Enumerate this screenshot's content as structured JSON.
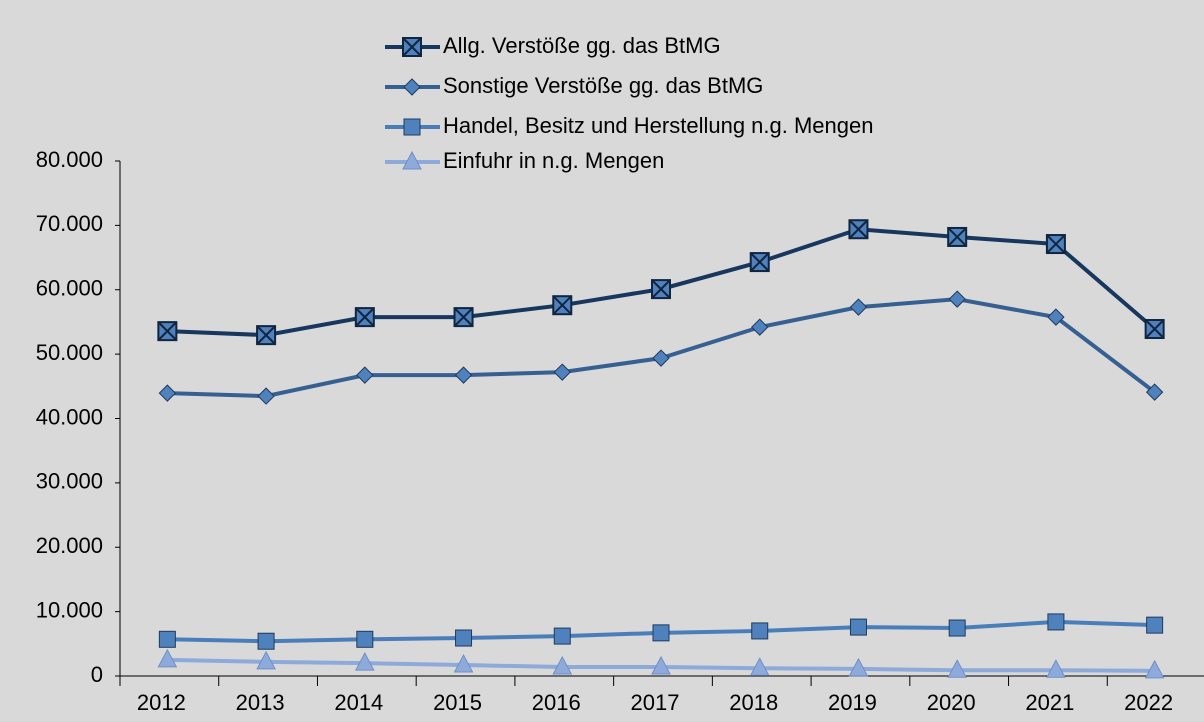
{
  "chart_data": {
    "type": "line",
    "categories": [
      "2012",
      "2013",
      "2014",
      "2015",
      "2016",
      "2017",
      "2018",
      "2019",
      "2020",
      "2021",
      "2022"
    ],
    "series": [
      {
        "name": "Allg. Verstöße gg. das BtMG",
        "color": "#17375e",
        "marker": "x-square",
        "values": [
          53570,
          52950,
          55750,
          55750,
          57600,
          60100,
          64300,
          69400,
          68200,
          67100,
          53900
        ]
      },
      {
        "name": "Sonstige Verstöße gg. das BtMG",
        "color": "#376092",
        "marker": "diamond",
        "values": [
          43940,
          43480,
          46740,
          46740,
          47200,
          49380,
          54190,
          57300,
          58540,
          55750,
          44100
        ]
      },
      {
        "name": "Handel, Besitz und Herstellung n.g. Mengen",
        "color": "#4a7ebb",
        "marker": "square",
        "values": [
          5700,
          5400,
          5700,
          5900,
          6200,
          6700,
          7000,
          7600,
          7450,
          8400,
          7900
        ]
      },
      {
        "name": "Einfuhr in n.g. Mengen",
        "color": "#8eaadb",
        "marker": "triangle",
        "values": [
          2500,
          2200,
          2000,
          1700,
          1400,
          1400,
          1200,
          1100,
          900,
          900,
          800
        ]
      }
    ],
    "ylim": [
      0,
      80000
    ],
    "yticks": [
      0,
      {
        "value": 10000,
        "label": "10.000"
      },
      {
        "value": 20000,
        "label": "20.000"
      },
      {
        "value": 30000,
        "label": "30.000"
      },
      {
        "value": 40000,
        "label": "40.000"
      },
      {
        "value": 50000,
        "label": "50.000"
      },
      {
        "value": 60000,
        "label": "60.000"
      },
      {
        "value": 70000,
        "label": "70.000"
      },
      {
        "value": 80000,
        "label": "80.000"
      }
    ],
    "legend": "top",
    "grid": false
  }
}
